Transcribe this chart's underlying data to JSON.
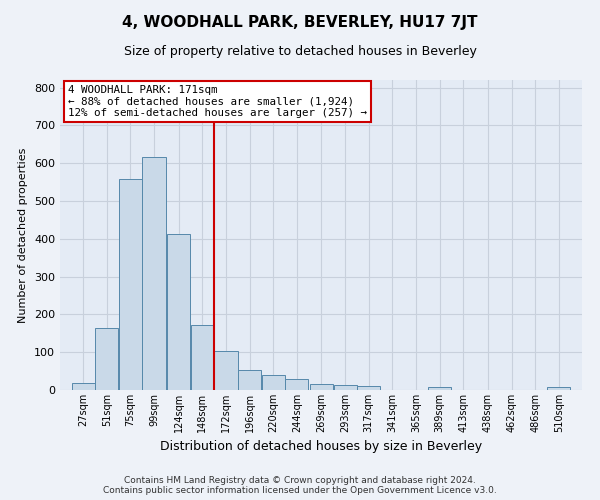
{
  "title": "4, WOODHALL PARK, BEVERLEY, HU17 7JT",
  "subtitle": "Size of property relative to detached houses in Beverley",
  "xlabel": "Distribution of detached houses by size in Beverley",
  "ylabel": "Number of detached properties",
  "footer_line1": "Contains HM Land Registry data © Crown copyright and database right 2024.",
  "footer_line2": "Contains public sector information licensed under the Open Government Licence v3.0.",
  "bar_labels": [
    "27sqm",
    "51sqm",
    "75sqm",
    "99sqm",
    "124sqm",
    "148sqm",
    "172sqm",
    "196sqm",
    "220sqm",
    "244sqm",
    "269sqm",
    "293sqm",
    "317sqm",
    "341sqm",
    "365sqm",
    "389sqm",
    "413sqm",
    "438sqm",
    "462sqm",
    "486sqm",
    "510sqm"
  ],
  "bar_values": [
    18,
    165,
    558,
    617,
    412,
    172,
    103,
    52,
    40,
    30,
    15,
    13,
    10,
    0,
    0,
    8,
    0,
    0,
    0,
    0,
    7
  ],
  "bar_color": "#c9d9e8",
  "bar_edge_color": "#5588aa",
  "property_label": "4 WOODHALL PARK: 171sqm",
  "annotation_line1": "← 88% of detached houses are smaller (1,924)",
  "annotation_line2": "12% of semi-detached houses are larger (257) →",
  "vline_color": "#cc0000",
  "annotation_box_edge": "#cc0000",
  "ylim": [
    0,
    820
  ],
  "yticks": [
    0,
    100,
    200,
    300,
    400,
    500,
    600,
    700,
    800
  ],
  "grid_color": "#c8d0dc",
  "bg_color": "#eef2f8",
  "plot_bg_color": "#e4ebf5",
  "title_fontsize": 11,
  "subtitle_fontsize": 9,
  "ylabel_fontsize": 8,
  "xlabel_fontsize": 9,
  "footer_fontsize": 6.5,
  "tick_fontsize": 8,
  "xtick_fontsize": 7
}
